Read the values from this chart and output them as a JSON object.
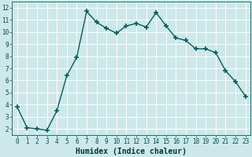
{
  "x": [
    0,
    1,
    2,
    3,
    4,
    5,
    6,
    7,
    8,
    9,
    10,
    11,
    12,
    13,
    14,
    15,
    16,
    17,
    18,
    19,
    20,
    21,
    22,
    23
  ],
  "y": [
    3.8,
    2.1,
    2.0,
    1.9,
    3.5,
    6.4,
    7.9,
    11.7,
    10.8,
    10.3,
    9.9,
    10.5,
    10.7,
    10.4,
    11.6,
    10.5,
    9.5,
    9.3,
    8.6,
    8.6,
    8.3,
    6.8,
    5.9,
    4.7
  ],
  "xlabel": "Humidex (Indice chaleur)",
  "xlim": [
    -0.5,
    23.5
  ],
  "ylim": [
    1.5,
    12.5
  ],
  "line_color": "#006060",
  "marker": "+",
  "marker_size": 4,
  "marker_lw": 1.2,
  "line_width": 1.0,
  "bg_color": "#cce8e8",
  "grid_color": "#ffffff",
  "yticks": [
    2,
    3,
    4,
    5,
    6,
    7,
    8,
    9,
    10,
    11,
    12
  ],
  "xticks": [
    0,
    1,
    2,
    3,
    4,
    5,
    6,
    7,
    8,
    9,
    10,
    11,
    12,
    13,
    14,
    15,
    16,
    17,
    18,
    19,
    20,
    21,
    22,
    23
  ],
  "tick_label_color": "#005050",
  "xlabel_color": "#003838",
  "xlabel_fontsize": 7,
  "tick_fontsize": 5.5
}
